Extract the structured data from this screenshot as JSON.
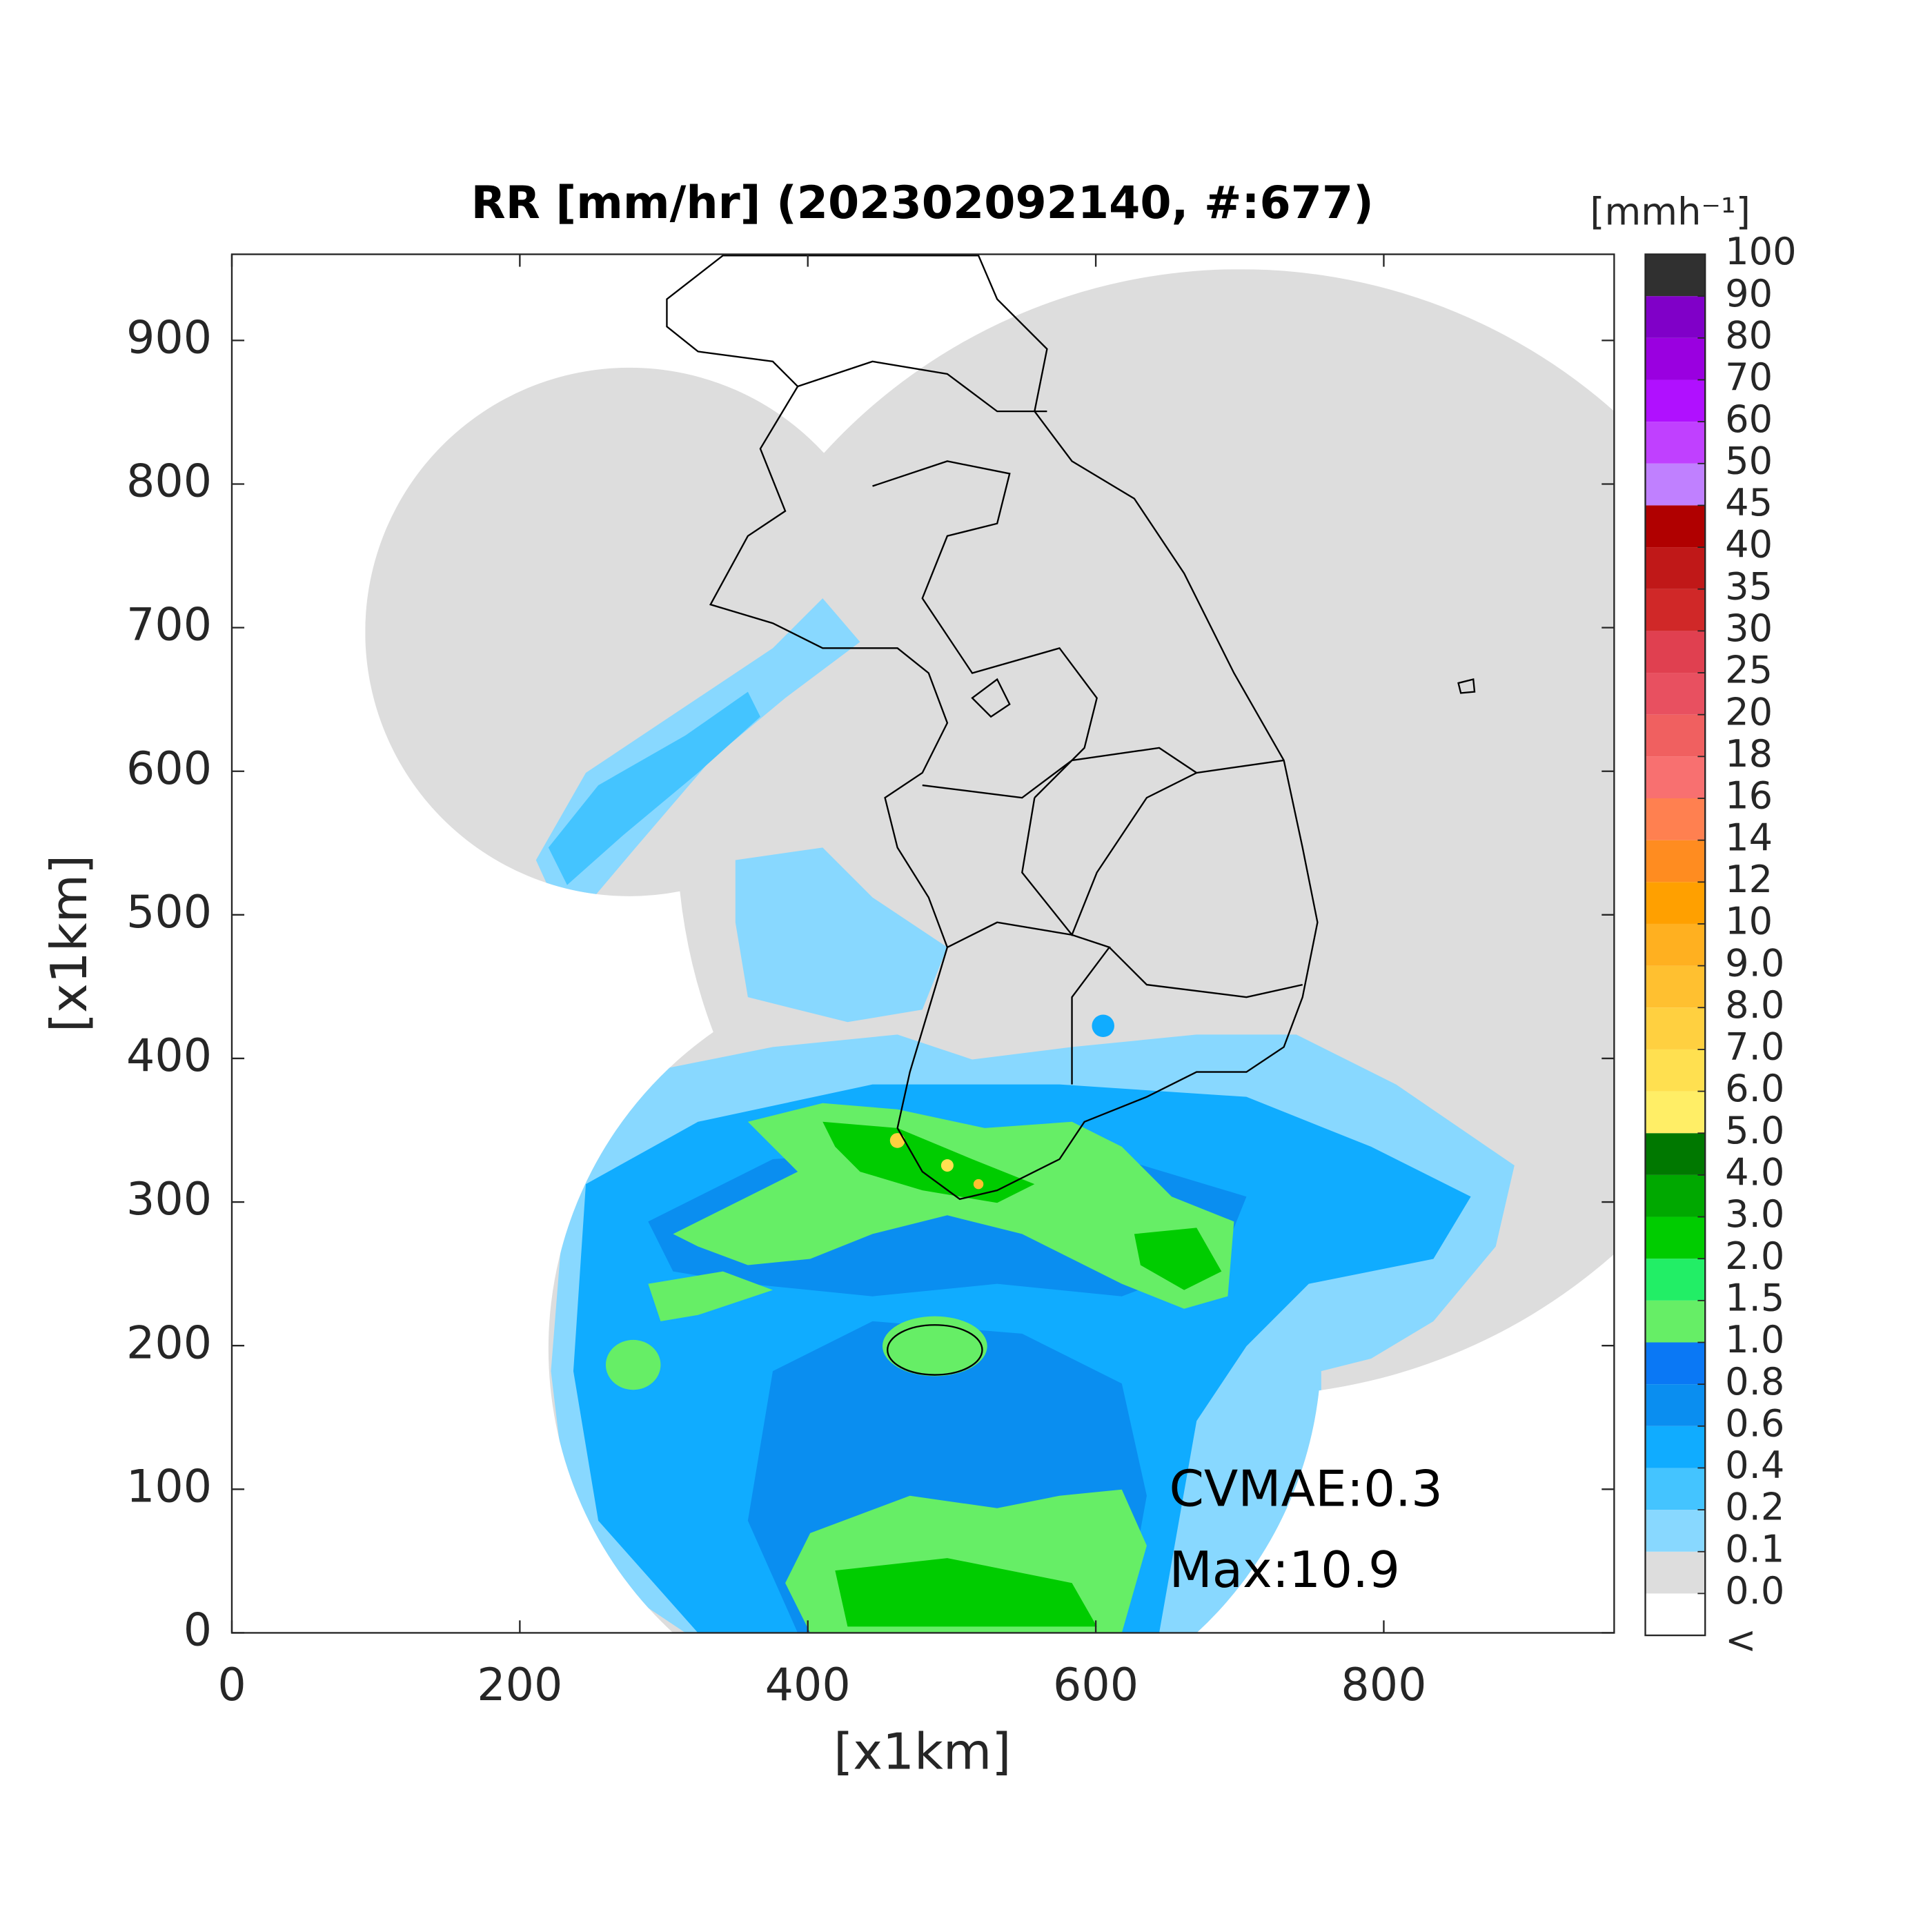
{
  "chart_data": {
    "type": "map",
    "title": "RR [mm/hr] (202302092140, #:677)",
    "xlabel": "[x1km]",
    "ylabel": "[x1km]",
    "xlim": [
      0,
      960
    ],
    "ylim": [
      0,
      960
    ],
    "xticks": [
      0,
      200,
      400,
      600,
      800
    ],
    "yticks": [
      0,
      100,
      200,
      300,
      400,
      500,
      600,
      700,
      800,
      900
    ],
    "annotations": [
      "CVMAE:0.3",
      "Max:10.9"
    ],
    "colorbar": {
      "label": "[mmh⁻¹]",
      "ticks": [
        "<",
        {
          "value": 0,
          "label": "0.0"
        },
        0.1,
        0.2,
        0.4,
        0.6,
        0.8,
        {
          "value": 1,
          "label": "1.0"
        },
        1.5,
        {
          "value": 2,
          "label": "2.0"
        },
        {
          "value": 3,
          "label": "3.0"
        },
        {
          "value": 4,
          "label": "4.0"
        },
        {
          "value": 5,
          "label": "5.0"
        },
        {
          "value": 6,
          "label": "6.0"
        },
        {
          "value": 7,
          "label": "7.0"
        },
        {
          "value": 8,
          "label": "8.0"
        },
        {
          "value": 9,
          "label": "9.0"
        },
        10,
        12,
        14,
        16,
        18,
        20,
        25,
        30,
        35,
        40,
        45,
        50,
        60,
        70,
        80,
        90,
        100
      ],
      "colors": [
        "#ffffff",
        "#dddddd",
        "#88d8ff",
        "#44c4ff",
        "#10acff",
        "#0a8ef0",
        "#0a78f5",
        "#66ee66",
        "#22ee66",
        "#00cc00",
        "#00a800",
        "#007800",
        "#ffee66",
        "#ffe050",
        "#ffd040",
        "#ffc030",
        "#ffb020",
        "#ffa000",
        "#ff8c20",
        "#ff8050",
        "#f87070",
        "#f06060",
        "#e85060",
        "#e04050",
        "#d02828",
        "#c01818",
        "#b00000",
        "#c080ff",
        "#c040ff",
        "#b010ff",
        "#9a00e0",
        "#8000c8",
        "#303030"
      ]
    }
  }
}
